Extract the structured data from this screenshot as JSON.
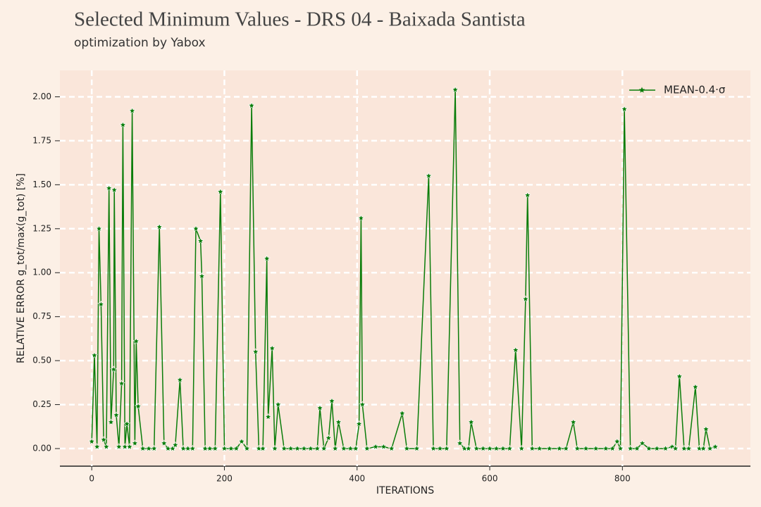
{
  "chart_data": {
    "type": "line",
    "title": "Selected Minimum Values - DRS 04 - Baixada Santista",
    "subtitle": "optimization by Yabox",
    "xlabel": "ITERATIONS",
    "ylabel": "RELATIVE ERROR g_tot/max(g_tot) [%]",
    "xlim": [
      -48,
      993
    ],
    "ylim": [
      -0.1,
      2.15
    ],
    "xticks": [
      0,
      200,
      400,
      600,
      800
    ],
    "yticks": [
      {
        "value": 0,
        "label": "0.00"
      },
      {
        "value": 0.25,
        "label": "0.25"
      },
      {
        "value": 0.5,
        "label": "0.50"
      },
      {
        "value": 0.75,
        "label": "0.75"
      },
      {
        "value": 1,
        "label": "1.00"
      },
      {
        "value": 1.25,
        "label": "1.25"
      },
      {
        "value": 1.5,
        "label": "1.50"
      },
      {
        "value": 1.75,
        "label": "1.75"
      },
      {
        "value": 2,
        "label": "2.00"
      }
    ],
    "grid": true,
    "legend": "upper right",
    "x": [
      0,
      4,
      8,
      11,
      14,
      18,
      22,
      26,
      29,
      33,
      34,
      37,
      41,
      45,
      47,
      50,
      53,
      57,
      61,
      65,
      67,
      70,
      77,
      86,
      94,
      102,
      109,
      115,
      122,
      126,
      133,
      138,
      145,
      152,
      157,
      164,
      166,
      171,
      178,
      186,
      194,
      200,
      210,
      218,
      226,
      234,
      241,
      247,
      252,
      258,
      264,
      266,
      272,
      276,
      281,
      290,
      300,
      310,
      320,
      330,
      340,
      344,
      350,
      357,
      362,
      367,
      372,
      380,
      390,
      398,
      403,
      406,
      408,
      415,
      428,
      440,
      452,
      468,
      475,
      490,
      508,
      515,
      525,
      535,
      548,
      555,
      562,
      568,
      572,
      580,
      590,
      600,
      610,
      620,
      630,
      639,
      648,
      654,
      657,
      664,
      675,
      690,
      705,
      715,
      726,
      732,
      745,
      760,
      775,
      785,
      792,
      797,
      803,
      812,
      822,
      830,
      840,
      852,
      865,
      875,
      880,
      886,
      893,
      900,
      910,
      916,
      922,
      926,
      932,
      940
    ],
    "series": [
      {
        "name": "MEAN-0.4·σ",
        "color": "#0a7d0a",
        "values": [
          0.04,
          0.53,
          0.01,
          1.25,
          0.82,
          0.05,
          0.01,
          1.48,
          0.15,
          0.45,
          1.47,
          0.19,
          0.01,
          0.37,
          1.84,
          0.01,
          0.14,
          0.01,
          1.92,
          0.03,
          0.61,
          0.24,
          0,
          0,
          0,
          1.26,
          0.03,
          0,
          0,
          0.02,
          0.39,
          0,
          0,
          0,
          1.25,
          1.18,
          0.98,
          0,
          0,
          0,
          1.46,
          0,
          0,
          0,
          0.04,
          0,
          1.95,
          0.55,
          0,
          0,
          1.08,
          0.18,
          0.57,
          0,
          0.25,
          0,
          0,
          0,
          0,
          0,
          0,
          0.23,
          0,
          0.06,
          0.27,
          0,
          0.15,
          0,
          0,
          0,
          0.14,
          1.31,
          0.25,
          0,
          0.01,
          0.01,
          0,
          0.2,
          0,
          0,
          1.55,
          0,
          0,
          0,
          2.04,
          0.03,
          0,
          0,
          0.15,
          0,
          0,
          0,
          0,
          0,
          0,
          0.56,
          0,
          0.85,
          1.44,
          0,
          0,
          0,
          0,
          0,
          0.15,
          0,
          0,
          0,
          0,
          0,
          0.04,
          0,
          1.93,
          0,
          0,
          0.03,
          0,
          0,
          0,
          0.01,
          0,
          0.41,
          0,
          0,
          0.35,
          0,
          0,
          0.11,
          0,
          0.01
        ]
      }
    ]
  }
}
